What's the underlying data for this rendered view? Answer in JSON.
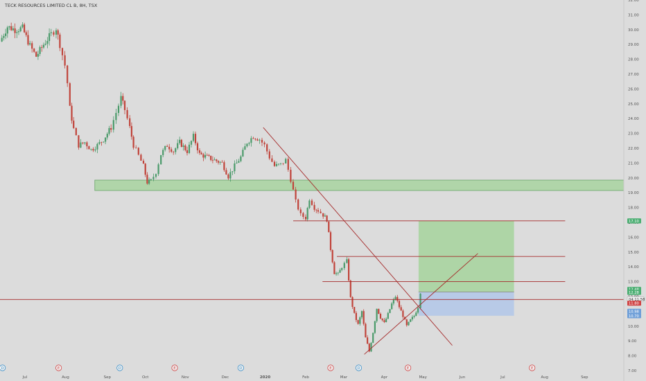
{
  "header": {
    "title": "TECK RESOURCES LIMITED CL B, 8H, TSX"
  },
  "colors": {
    "background": "#dcdcdc",
    "up_candle": "#4a9a6a",
    "down_candle": "#c0433a",
    "trendline": "#a52a2a",
    "support_zone": "#a8d4a0",
    "target_zone": "#a8d4a0",
    "stop_zone": "#b4c8e8",
    "axis_text": "#555555",
    "price_label_green": "#4caf73",
    "price_label_red": "#d04545",
    "price_label_blue": "#6f9fd8"
  },
  "chart_data": {
    "type": "candlestick",
    "ylim": [
      7.0,
      32.0
    ],
    "y_ticks": [
      "7.00",
      "8.00",
      "9.00",
      "10.00",
      "11.00",
      "12.00",
      "13.00",
      "14.00",
      "15.00",
      "16.00",
      "17.00",
      "18.00",
      "19.00",
      "20.00",
      "21.00",
      "22.00",
      "23.00",
      "24.00",
      "25.00",
      "26.00",
      "27.00",
      "28.00",
      "29.00",
      "30.00",
      "31.00",
      "32.00"
    ],
    "x_ticks": [
      {
        "label": "Jul",
        "t": 0.04
      },
      {
        "label": "Aug",
        "t": 0.105
      },
      {
        "label": "Sep",
        "t": 0.172
      },
      {
        "label": "Oct",
        "t": 0.233
      },
      {
        "label": "Nov",
        "t": 0.297
      },
      {
        "label": "Dec",
        "t": 0.361
      },
      {
        "label": "2020",
        "t": 0.425
      },
      {
        "label": "Feb",
        "t": 0.49
      },
      {
        "label": "Mar",
        "t": 0.551
      },
      {
        "label": "Apr",
        "t": 0.616
      },
      {
        "label": "May",
        "t": 0.678
      },
      {
        "label": "Jun",
        "t": 0.741
      },
      {
        "label": "Jul",
        "t": 0.806
      },
      {
        "label": "Aug",
        "t": 0.873
      },
      {
        "label": "Sep",
        "t": 0.937
      }
    ],
    "events": [
      {
        "label": "D",
        "t": 0.004,
        "kind": "dividend"
      },
      {
        "label": "E",
        "t": 0.094,
        "kind": "earnings"
      },
      {
        "label": "D",
        "t": 0.192,
        "kind": "dividend"
      },
      {
        "label": "E",
        "t": 0.28,
        "kind": "earnings"
      },
      {
        "label": "D",
        "t": 0.386,
        "kind": "dividend"
      },
      {
        "label": "E",
        "t": 0.53,
        "kind": "earnings"
      },
      {
        "label": "D",
        "t": 0.575,
        "kind": "dividend"
      },
      {
        "label": "E",
        "t": 0.654,
        "kind": "earnings"
      },
      {
        "label": "E",
        "t": 0.853,
        "kind": "earnings"
      }
    ],
    "candle_anchors": [
      {
        "t": 0.0,
        "c": 29.2
      },
      {
        "t": 0.012,
        "c": 30.2
      },
      {
        "t": 0.024,
        "c": 30.0
      },
      {
        "t": 0.036,
        "c": 30.1
      },
      {
        "t": 0.048,
        "c": 28.9
      },
      {
        "t": 0.058,
        "c": 28.2
      },
      {
        "t": 0.07,
        "c": 29.0
      },
      {
        "t": 0.082,
        "c": 29.7
      },
      {
        "t": 0.09,
        "c": 30.1
      },
      {
        "t": 0.096,
        "c": 29.0
      },
      {
        "t": 0.104,
        "c": 27.6
      },
      {
        "t": 0.108,
        "c": 26.4
      },
      {
        "t": 0.112,
        "c": 24.7
      },
      {
        "t": 0.118,
        "c": 23.3
      },
      {
        "t": 0.126,
        "c": 22.2
      },
      {
        "t": 0.136,
        "c": 22.4
      },
      {
        "t": 0.146,
        "c": 21.9
      },
      {
        "t": 0.156,
        "c": 22.2
      },
      {
        "t": 0.166,
        "c": 22.6
      },
      {
        "t": 0.178,
        "c": 23.4
      },
      {
        "t": 0.186,
        "c": 24.4
      },
      {
        "t": 0.194,
        "c": 25.4
      },
      {
        "t": 0.2,
        "c": 24.6
      },
      {
        "t": 0.208,
        "c": 23.4
      },
      {
        "t": 0.214,
        "c": 22.2
      },
      {
        "t": 0.222,
        "c": 21.5
      },
      {
        "t": 0.23,
        "c": 20.8
      },
      {
        "t": 0.236,
        "c": 19.7
      },
      {
        "t": 0.242,
        "c": 19.8
      },
      {
        "t": 0.25,
        "c": 20.4
      },
      {
        "t": 0.258,
        "c": 21.6
      },
      {
        "t": 0.268,
        "c": 22.2
      },
      {
        "t": 0.278,
        "c": 21.8
      },
      {
        "t": 0.288,
        "c": 22.4
      },
      {
        "t": 0.3,
        "c": 21.8
      },
      {
        "t": 0.31,
        "c": 22.8
      },
      {
        "t": 0.32,
        "c": 21.6
      },
      {
        "t": 0.332,
        "c": 21.4
      },
      {
        "t": 0.344,
        "c": 21.2
      },
      {
        "t": 0.356,
        "c": 21.0
      },
      {
        "t": 0.366,
        "c": 20.1
      },
      {
        "t": 0.376,
        "c": 20.8
      },
      {
        "t": 0.386,
        "c": 21.4
      },
      {
        "t": 0.396,
        "c": 22.4
      },
      {
        "t": 0.406,
        "c": 22.8
      },
      {
        "t": 0.416,
        "c": 22.6
      },
      {
        "t": 0.424,
        "c": 22.2
      },
      {
        "t": 0.432,
        "c": 21.4
      },
      {
        "t": 0.44,
        "c": 20.8
      },
      {
        "t": 0.45,
        "c": 20.9
      },
      {
        "t": 0.458,
        "c": 21.2
      },
      {
        "t": 0.466,
        "c": 19.9
      },
      {
        "t": 0.474,
        "c": 18.4
      },
      {
        "t": 0.482,
        "c": 17.5
      },
      {
        "t": 0.49,
        "c": 17.3
      },
      {
        "t": 0.496,
        "c": 18.6
      },
      {
        "t": 0.504,
        "c": 18.0
      },
      {
        "t": 0.51,
        "c": 17.8
      },
      {
        "t": 0.518,
        "c": 17.5
      },
      {
        "t": 0.524,
        "c": 17.2
      },
      {
        "t": 0.53,
        "c": 15.2
      },
      {
        "t": 0.536,
        "c": 13.6
      },
      {
        "t": 0.542,
        "c": 13.5
      },
      {
        "t": 0.548,
        "c": 14.0
      },
      {
        "t": 0.556,
        "c": 14.4
      },
      {
        "t": 0.562,
        "c": 11.9
      },
      {
        "t": 0.568,
        "c": 10.8
      },
      {
        "t": 0.574,
        "c": 10.1
      },
      {
        "t": 0.58,
        "c": 11.0
      },
      {
        "t": 0.586,
        "c": 9.2
      },
      {
        "t": 0.592,
        "c": 8.3
      },
      {
        "t": 0.598,
        "c": 9.6
      },
      {
        "t": 0.604,
        "c": 11.2
      },
      {
        "t": 0.61,
        "c": 10.6
      },
      {
        "t": 0.616,
        "c": 10.2
      },
      {
        "t": 0.622,
        "c": 10.8
      },
      {
        "t": 0.628,
        "c": 11.5
      },
      {
        "t": 0.634,
        "c": 12.0
      },
      {
        "t": 0.64,
        "c": 11.3
      },
      {
        "t": 0.646,
        "c": 10.7
      },
      {
        "t": 0.652,
        "c": 10.0
      },
      {
        "t": 0.658,
        "c": 10.4
      },
      {
        "t": 0.664,
        "c": 10.7
      },
      {
        "t": 0.67,
        "c": 11.3
      },
      {
        "t": 0.674,
        "c": 12.3
      }
    ],
    "support_zone": {
      "t1": 0.152,
      "t2": 1.0,
      "y_low": 19.15,
      "y_high": 19.85
    },
    "horizontal_levels": [
      {
        "t1": 0.47,
        "t2": 0.906,
        "y": 17.1
      },
      {
        "t1": 0.54,
        "t2": 0.906,
        "y": 14.7
      },
      {
        "t1": 0.517,
        "t2": 0.906,
        "y": 13.0
      },
      {
        "t1": 0.0,
        "t2": 1.0,
        "y": 11.8
      }
    ],
    "trendlines": [
      {
        "t1": 0.422,
        "y1": 23.4,
        "t2": 0.725,
        "y2": 8.7
      },
      {
        "t1": 0.584,
        "y1": 8.1,
        "t2": 0.766,
        "y2": 14.9
      }
    ],
    "position": {
      "t1": 0.671,
      "t2": 0.824,
      "entry": 12.3,
      "target": 17.1,
      "stop": 10.7
    },
    "price_labels": [
      {
        "text": "17.10",
        "y": 17.1,
        "style": "green"
      },
      {
        "text": "12.48",
        "y": 12.48,
        "style": "green"
      },
      {
        "text": "12.28",
        "y": 12.28,
        "style": "green"
      },
      {
        "text": "04:11:58",
        "y": 11.82,
        "style": "outline"
      },
      {
        "text": "11.80",
        "y": 11.55,
        "style": "red"
      },
      {
        "text": "10.98",
        "y": 11.0,
        "style": "blue"
      },
      {
        "text": "10.70",
        "y": 10.7,
        "style": "blue"
      }
    ]
  }
}
